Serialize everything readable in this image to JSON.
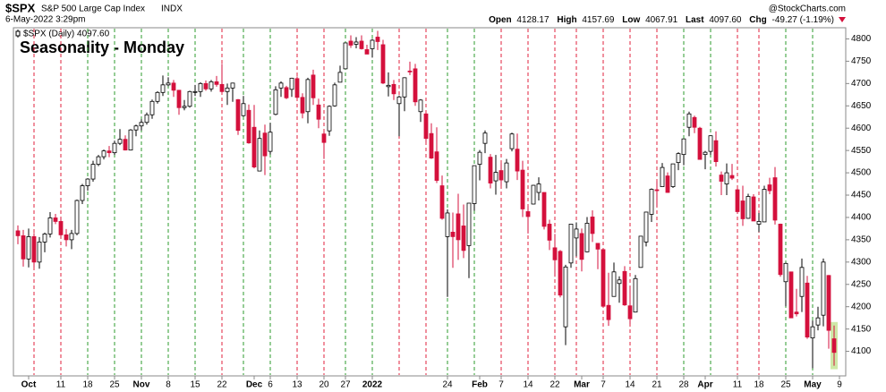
{
  "header": {
    "symbol": "$SPX",
    "name": "S&P 500 Large Cap Index",
    "exchange": "INDX",
    "date": "6-May-2022 3:29pm",
    "copyright": "@StockCharts.com",
    "quote": {
      "open_label": "Open",
      "open": "4128.17",
      "high_label": "High",
      "high": "4157.69",
      "low_label": "Low",
      "low": "4067.91",
      "last_label": "Last",
      "last": "4097.60",
      "chg_label": "Chg",
      "chg": "-49.27 (-1.19%)"
    }
  },
  "chart_data": {
    "type": "candlestick",
    "title": "Seasonality - Monday",
    "legend": "$SPX (Daily) 4097.60",
    "up_color": "#000000",
    "down_color": "#d4103c",
    "grid": false,
    "ylim": [
      4045,
      4825
    ],
    "yticks": [
      4100,
      4150,
      4200,
      4250,
      4300,
      4350,
      4400,
      4450,
      4500,
      4550,
      4600,
      4650,
      4700,
      4750,
      4800
    ],
    "categories": [
      null,
      null,
      "Oct",
      null,
      null,
      null,
      null,
      null,
      "11",
      null,
      null,
      null,
      null,
      "18",
      null,
      null,
      null,
      null,
      "25",
      null,
      null,
      null,
      null,
      "Nov",
      null,
      null,
      null,
      null,
      "8",
      null,
      null,
      null,
      null,
      "15",
      null,
      null,
      null,
      null,
      "22",
      null,
      null,
      null,
      null,
      null,
      "Dec",
      null,
      null,
      "6",
      null,
      null,
      null,
      null,
      "13",
      null,
      null,
      null,
      null,
      "20",
      null,
      null,
      null,
      "27",
      null,
      null,
      null,
      null,
      "2022",
      null,
      null,
      null,
      null,
      null,
      null,
      null,
      null,
      null,
      null,
      null,
      null,
      null,
      "24",
      null,
      null,
      null,
      null,
      null,
      "Feb",
      null,
      null,
      null,
      "7",
      null,
      null,
      null,
      null,
      "14",
      null,
      null,
      null,
      null,
      "22",
      null,
      null,
      null,
      null,
      "Mar",
      null,
      null,
      null,
      "7",
      null,
      null,
      null,
      null,
      "14",
      null,
      null,
      null,
      null,
      "21",
      null,
      null,
      null,
      null,
      "28",
      null,
      null,
      null,
      "Apr",
      null,
      null,
      null,
      null,
      null,
      "11",
      null,
      null,
      null,
      "18",
      null,
      null,
      null,
      null,
      "25",
      null,
      null,
      null,
      null,
      "May",
      null,
      null,
      null,
      null,
      "9"
    ],
    "open": [
      4370,
      4359,
      4307,
      4357,
      4300,
      4345,
      4363,
      4399,
      4391,
      4361,
      4350,
      4364,
      4438,
      4471,
      4486,
      4519,
      4536,
      4549,
      4545,
      4566,
      4575,
      4551,
      4596,
      4605,
      4613,
      4630,
      4660,
      4680,
      4697,
      4701,
      4685,
      4646,
      4649,
      4682,
      4682,
      4700,
      4688,
      4704,
      4698,
      4682,
      4690,
      4664,
      4628,
      4640,
      4602,
      4504,
      4589,
      4548,
      4631,
      4690,
      4691,
      4687,
      4711,
      4669,
      4637,
      4719,
      4652,
      4587,
      4594,
      4650,
      4703,
      4733,
      4795,
      4788,
      4795,
      4776,
      4778,
      4804,
      4787,
      4693,
      4698,
      4655,
      4670,
      4728,
      4733,
      4637,
      4632,
      4588,
      4547,
      4471,
      4357,
      4367,
      4408,
      4381,
      4337,
      4431,
      4519,
      4566,
      4535,
      4482,
      4505,
      4480,
      4554,
      4553,
      4506,
      4413,
      4430,
      4456,
      4456,
      4385,
      4332,
      4324,
      4155,
      4298,
      4354,
      4364,
      4323,
      4401,
      4342,
      4328,
      4203,
      4223,
      4252,
      4279,
      4202,
      4188,
      4288,
      4345,
      4407,
      4462,
      4469,
      4493,
      4469,
      4523,
      4541,
      4602,
      4624,
      4600,
      4541,
      4548,
      4572,
      4495,
      4475,
      4494,
      4462,
      4437,
      4398,
      4446,
      4385,
      4390,
      4473,
      4489,
      4385,
      4256,
      4278,
      4188,
      4223,
      4253,
      4130,
      4159,
      4181,
      4270,
      4128.17,
      null
    ],
    "high": [
      4382,
      4372,
      4375,
      4365,
      4356,
      4366,
      4412,
      4408,
      4400,
      4374,
      4372,
      4440,
      4475,
      4488,
      4527,
      4540,
      4552,
      4560,
      4572,
      4598,
      4584,
      4598,
      4608,
      4620,
      4635,
      4664,
      4683,
      4718,
      4714,
      4708,
      4685,
      4663,
      4684,
      4697,
      4703,
      4707,
      4708,
      4717,
      4744,
      4700,
      4702,
      4665,
      4672,
      4653,
      4652,
      4595,
      4608,
      4612,
      4694,
      4705,
      4695,
      4713,
      4716,
      4678,
      4713,
      4731,
      4666,
      4592,
      4651,
      4702,
      4740,
      4791,
      4808,
      4804,
      4808,
      4787,
      4800,
      4818,
      4798,
      4725,
      4708,
      4673,
      4714,
      4749,
      4744,
      4665,
      4632,
      4611,
      4602,
      4494,
      4418,
      4411,
      4453,
      4429,
      4432,
      4516,
      4551,
      4595,
      4542,
      4540,
      4521,
      4531,
      4590,
      4588,
      4527,
      4426,
      4473,
      4490,
      4456,
      4395,
      4363,
      4327,
      4294,
      4385,
      4389,
      4375,
      4401,
      4416,
      4342,
      4328,
      4276,
      4299,
      4268,
      4291,
      4247,
      4271,
      4358,
      4413,
      4465,
      4481,
      4522,
      4501,
      4520,
      4546,
      4576,
      4637,
      4628,
      4603,
      4549,
      4583,
      4593,
      4503,
      4521,
      4520,
      4464,
      4471,
      4453,
      4452,
      4410,
      4471,
      4489,
      4513,
      4386,
      4299,
      4278,
      4240,
      4308,
      4269,
      4169,
      4200,
      4308,
      4271,
      4157.69,
      null
    ],
    "low": [
      4340,
      4290,
      4288,
      4288,
      4285,
      4322,
      4355,
      4385,
      4355,
      4335,
      4329,
      4360,
      4430,
      4460,
      4480,
      4515,
      4530,
      4535,
      4540,
      4562,
      4550,
      4550,
      4582,
      4595,
      4608,
      4621,
      4655,
      4672,
      4694,
      4670,
      4630,
      4640,
      4646,
      4672,
      4670,
      4684,
      4682,
      4693,
      4680,
      4652,
      4659,
      4585,
      4626,
      4565,
      4510,
      4504,
      4495,
      4541,
      4629,
      4670,
      4665,
      4670,
      4667,
      4622,
      4611,
      4652,
      4600,
      4531,
      4583,
      4648,
      4703,
      4733,
      4780,
      4779,
      4776,
      4766,
      4758,
      4775,
      4699,
      4671,
      4663,
      4582,
      4638,
      4719,
      4650,
      4614,
      4568,
      4531,
      4477,
      4395,
      4222,
      4287,
      4305,
      4309,
      4264,
      4415,
      4483,
      4544,
      4465,
      4451,
      4471,
      4465,
      4548,
      4484,
      4401,
      4364,
      4429,
      4438,
      4373,
      4327,
      4267,
      4221,
      4114,
      4287,
      4313,
      4279,
      4322,
      4345,
      4284,
      4199,
      4157,
      4223,
      4209,
      4202,
      4161,
      4187,
      4288,
      4335,
      4390,
      4425,
      4469,
      4455,
      4466,
      4506,
      4517,
      4582,
      4589,
      4530,
      4508,
      4540,
      4514,
      4450,
      4450,
      4484,
      4408,
      4381,
      4397,
      4392,
      4367,
      4390,
      4452,
      4384,
      4267,
      4201,
      4175,
      4178,
      4188,
      4128,
      4062,
      4147,
      4156,
      4106,
      4067.91,
      null
    ],
    "close": [
      4359,
      4307,
      4357,
      4300,
      4345,
      4363,
      4399,
      4391,
      4361,
      4350,
      4364,
      4438,
      4471,
      4486,
      4519,
      4536,
      4549,
      4545,
      4566,
      4575,
      4551,
      4596,
      4605,
      4613,
      4630,
      4660,
      4680,
      4697,
      4701,
      4685,
      4646,
      4649,
      4682,
      4682,
      4700,
      4688,
      4704,
      4698,
      4682,
      4690,
      4701,
      4595,
      4655,
      4567,
      4513,
      4577,
      4538,
      4591,
      4686,
      4701,
      4668,
      4712,
      4669,
      4634,
      4709,
      4668,
      4620,
      4568,
      4649,
      4697,
      4725,
      4791,
      4786,
      4793,
      4778,
      4766,
      4797,
      4794,
      4701,
      4696,
      4677,
      4670,
      4713,
      4726,
      4659,
      4663,
      4577,
      4533,
      4483,
      4398,
      4410,
      4357,
      4350,
      4326,
      4432,
      4516,
      4546,
      4589,
      4477,
      4501,
      4484,
      4522,
      4587,
      4504,
      4419,
      4402,
      4472,
      4475,
      4380,
      4349,
      4305,
      4226,
      4289,
      4385,
      4374,
      4306,
      4387,
      4364,
      4329,
      4201,
      4171,
      4278,
      4260,
      4204,
      4173,
      4263,
      4358,
      4412,
      4463,
      4461,
      4512,
      4456,
      4520,
      4543,
      4576,
      4632,
      4602,
      4530,
      4546,
      4583,
      4525,
      4481,
      4500,
      4488,
      4413,
      4397,
      4447,
      4392,
      4391,
      4463,
      4460,
      4394,
      4272,
      4297,
      4175,
      4184,
      4288,
      4132,
      4155,
      4175,
      4300,
      4147,
      4097.6,
      null
    ]
  }
}
